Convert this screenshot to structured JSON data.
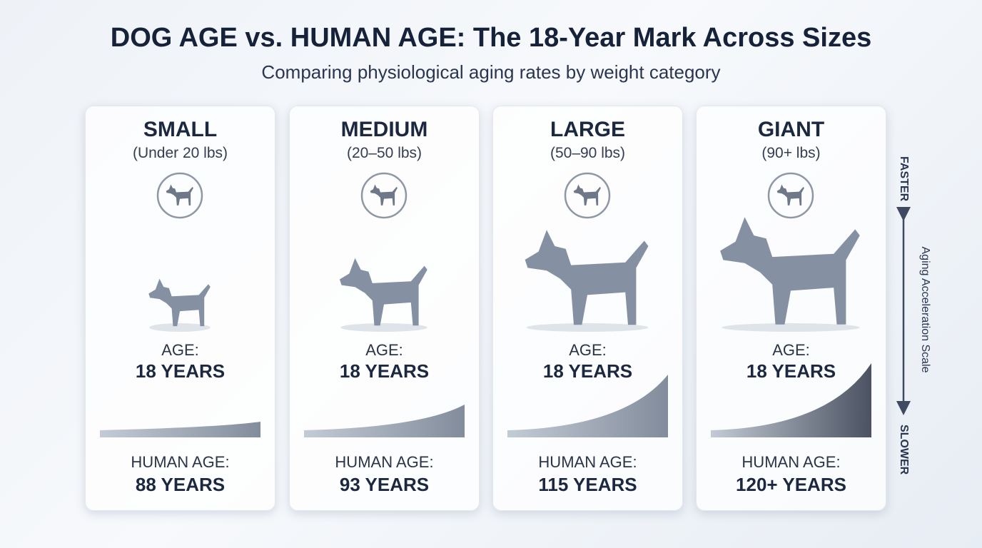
{
  "header": {
    "title": "DOG AGE vs. HUMAN AGE: The 18-Year Mark Across Sizes",
    "subtitle": "Comparing physiological aging rates by weight category"
  },
  "cards": [
    {
      "size": "SMALL",
      "weight": "(Under 20 lbs)",
      "age_label": "AGE:",
      "age": "18 YEARS",
      "human_label": "HUMAN AGE:",
      "human_age": "88 YEARS"
    },
    {
      "size": "MEDIUM",
      "weight": "(20–50 lbs)",
      "age_label": "AGE:",
      "age": "18 YEARS",
      "human_label": "HUMAN AGE:",
      "human_age": "93 YEARS"
    },
    {
      "size": "LARGE",
      "weight": "(50–90 lbs)",
      "age_label": "AGE:",
      "age": "18 YEARS",
      "human_label": "HUMAN AGE:",
      "human_age": "115 YEARS"
    },
    {
      "size": "GIANT",
      "weight": "(90+ lbs)",
      "age_label": "AGE:",
      "age": "18 YEARS",
      "human_label": "HUMAN AGE:",
      "human_age": "120+ YEARS"
    }
  ],
  "scale": {
    "top": "FASTER",
    "label": "Aging Acceleration Scale",
    "bottom": "SLOWER"
  }
}
